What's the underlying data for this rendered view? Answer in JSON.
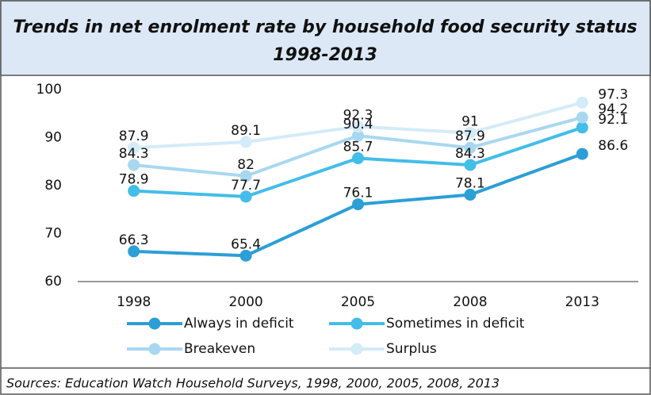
{
  "chart_data": {
    "type": "line",
    "title": "Trends in net enrolment rate by household food security status",
    "subtitle": "1998-2013",
    "source": "Sources: Education Watch Household Surveys, 1998, 2000, 2005, 2008, 2013",
    "categories": [
      "1998",
      "2000",
      "2005",
      "2008",
      "2013"
    ],
    "series": [
      {
        "name": "Always in deficit",
        "color": "#2b9fd6",
        "values": [
          66.3,
          65.4,
          76.1,
          78.1,
          86.6
        ]
      },
      {
        "name": "Sometimes in deficit",
        "color": "#43bde9",
        "values": [
          78.9,
          77.7,
          85.7,
          84.3,
          92.1
        ]
      },
      {
        "name": "Breakeven",
        "color": "#a8d8f0",
        "values": [
          84.3,
          82.0,
          90.4,
          87.9,
          94.2
        ]
      },
      {
        "name": "Surplus",
        "color": "#d4ebf8",
        "values": [
          87.9,
          89.1,
          92.3,
          91.0,
          97.3
        ]
      }
    ],
    "ylim": [
      60,
      100
    ],
    "yticks": [
      60,
      70,
      80,
      90,
      100
    ],
    "grid": false,
    "legend": "bottom"
  }
}
